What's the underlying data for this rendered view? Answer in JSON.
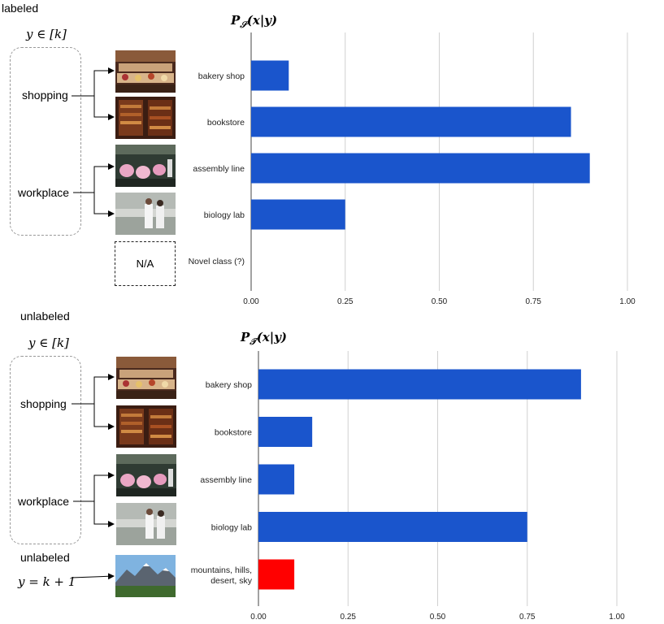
{
  "top": {
    "section_label": "labeled",
    "set_label": "y ∈ [k]",
    "groups": [
      "shopping",
      "workplace"
    ],
    "novel_placeholder": "N/A"
  },
  "bottom": {
    "section_label": "unlabeled",
    "set_label": "y ∈ [k]",
    "groups": [
      "shopping",
      "workplace"
    ],
    "novel_section_label": "unlabeled",
    "novel_eq": "y = k + 1"
  },
  "thumbnails": [
    "bakery shop",
    "bookstore",
    "assembly line",
    "biology lab",
    "mountains, hills, desert, sky"
  ],
  "colors": {
    "bar": "#1a55cc",
    "novel_bar": "#ff0000",
    "grid": "#d0d0d0",
    "axis": "#444444"
  },
  "chart_data": [
    {
      "type": "bar",
      "orientation": "horizontal",
      "title": "P_S(x|y)",
      "title_base": "P",
      "title_subscript": "𝒮",
      "title_args": "(x|y)",
      "categories": [
        "bakery shop",
        "bookstore",
        "assembly line",
        "biology lab",
        "Novel class (?)"
      ],
      "values": [
        0.1,
        0.85,
        0.9,
        0.25,
        0
      ],
      "xlim": [
        0,
        1
      ],
      "xticks": [
        "0.00",
        "0.25",
        "0.50",
        "0.75",
        "1.00"
      ],
      "highlight_index": null
    },
    {
      "type": "bar",
      "orientation": "horizontal",
      "title": "P_T(x|y)",
      "title_base": "P",
      "title_subscript": "𝒯",
      "title_args": "(x|y)",
      "categories": [
        "bakery shop",
        "bookstore",
        "assembly line",
        "biology lab",
        "mountains, hills, desert, sky"
      ],
      "values": [
        0.9,
        0.15,
        0.1,
        0.75,
        0.1
      ],
      "xlim": [
        0,
        1
      ],
      "xticks": [
        "0.00",
        "0.25",
        "0.50",
        "0.75",
        "1.00"
      ],
      "highlight_index": 4
    }
  ]
}
